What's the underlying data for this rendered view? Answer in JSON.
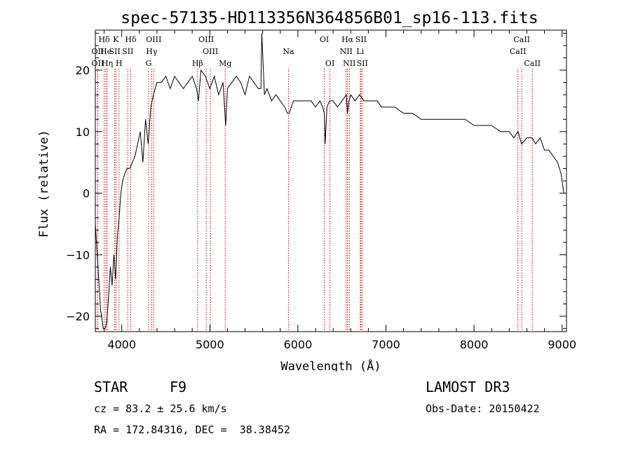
{
  "chart_data": {
    "type": "line",
    "title": "spec-57135-HD113356N364856B01_sp16-113.fits",
    "xlabel": "Wavelength (Å)",
    "ylabel": "Flux (relative)",
    "xlim": [
      3700,
      9050
    ],
    "ylim": [
      -22.5,
      26.5
    ],
    "x_ticks": [
      4000,
      5000,
      6000,
      7000,
      8000,
      9000
    ],
    "y_ticks": [
      -20,
      -10,
      0,
      10,
      20
    ],
    "x_tick_labels": [
      "4000",
      "5000",
      "6000",
      "7000",
      "8000",
      "9000"
    ],
    "y_tick_labels": [
      "−20",
      "−10",
      "0",
      "10",
      "20"
    ],
    "grid": false,
    "legend": "none",
    "series": [
      {
        "x": [
          3700,
          3730,
          3760,
          3790,
          3810,
          3830,
          3850,
          3870,
          3890,
          3910,
          3930,
          3950,
          3970,
          3990,
          4010,
          4030,
          4060,
          4090,
          4120,
          4150,
          4180,
          4210,
          4240,
          4270,
          4300,
          4330,
          4360,
          4400,
          4450,
          4500,
          4550,
          4600,
          4650,
          4700,
          4750,
          4800,
          4850,
          4870,
          4900,
          4950,
          5000,
          5050,
          5100,
          5150,
          5180,
          5200,
          5250,
          5300,
          5350,
          5400,
          5450,
          5500,
          5550,
          5580,
          5590,
          5620,
          5650,
          5700,
          5750,
          5800,
          5850,
          5880,
          5900,
          5950,
          6000,
          6050,
          6100,
          6150,
          6200,
          6250,
          6280,
          6300,
          6310,
          6330,
          6360,
          6400,
          6450,
          6500,
          6550,
          6563,
          6580,
          6600,
          6650,
          6700,
          6750,
          6800,
          6850,
          6900,
          6950,
          7000,
          7100,
          7200,
          7300,
          7400,
          7500,
          7600,
          7700,
          7800,
          7900,
          8000,
          8100,
          8200,
          8300,
          8400,
          8450,
          8500,
          8540,
          8600,
          8660,
          8700,
          8750,
          8800,
          8850,
          8900,
          8950,
          8970,
          8990,
          9000,
          9020
        ],
        "y": [
          -5,
          -12,
          -19,
          -22,
          -22,
          -21,
          -17,
          -12,
          -15,
          -10,
          -14,
          -7,
          -4,
          0,
          2,
          3,
          4,
          4,
          5,
          6,
          8,
          10,
          5,
          12,
          8,
          14,
          16,
          18,
          18,
          19,
          17,
          19,
          18,
          17,
          18,
          19,
          17,
          15,
          20,
          19,
          17,
          19,
          16,
          18,
          11,
          17,
          18,
          19,
          18,
          16,
          19,
          18,
          17,
          17,
          26,
          16,
          17,
          15,
          16,
          15,
          14,
          13,
          13,
          15,
          15,
          15,
          15,
          15,
          14,
          15,
          14,
          13,
          8,
          14,
          15,
          15,
          14,
          15,
          16,
          13,
          15,
          16,
          15,
          16,
          15,
          15,
          15,
          15,
          14,
          14,
          14,
          13,
          13,
          12,
          12,
          12,
          12,
          12,
          12,
          11,
          11,
          11,
          10,
          10,
          9,
          10,
          8,
          9,
          9,
          8,
          9,
          7,
          7,
          6,
          5,
          4,
          3,
          2,
          0
        ]
      }
    ],
    "spectral_lines": [
      {
        "label": "Hδ",
        "x": 3800,
        "row": 0
      },
      {
        "label": "OII",
        "x": 3727,
        "row": 1
      },
      {
        "label": "OII",
        "x": 3727,
        "row": 2
      },
      {
        "label": "He",
        "x": 3820,
        "row": 1
      },
      {
        "label": "Hη",
        "x": 3835,
        "row": 2
      },
      {
        "label": "K",
        "x": 3934,
        "row": 0
      },
      {
        "label": "SII",
        "x": 3920,
        "row": 1
      },
      {
        "label": "H",
        "x": 3969,
        "row": 2
      },
      {
        "label": "Hδ",
        "x": 4102,
        "row": 0
      },
      {
        "label": "SII",
        "x": 4068,
        "row": 1
      },
      {
        "label": "OIII",
        "x": 4363,
        "row": 0
      },
      {
        "label": "Hγ",
        "x": 4340,
        "row": 1
      },
      {
        "label": "G",
        "x": 4305,
        "row": 2
      },
      {
        "label": "OIII",
        "x": 4959,
        "row": 0
      },
      {
        "label": "OIII",
        "x": 5007,
        "row": 1
      },
      {
        "label": "Hβ",
        "x": 4861,
        "row": 2
      },
      {
        "label": "Mg",
        "x": 5175,
        "row": 2
      },
      {
        "label": "Na",
        "x": 5893,
        "row": 1
      },
      {
        "label": "OI",
        "x": 6300,
        "row": 0
      },
      {
        "label": "OI",
        "x": 6364,
        "row": 2
      },
      {
        "label": "Hα",
        "x": 6563,
        "row": 0
      },
      {
        "label": "SII",
        "x": 6717,
        "row": 0
      },
      {
        "label": "NII",
        "x": 6548,
        "row": 1
      },
      {
        "label": "Li",
        "x": 6708,
        "row": 1
      },
      {
        "label": "NII",
        "x": 6584,
        "row": 2
      },
      {
        "label": "SII",
        "x": 6731,
        "row": 2
      },
      {
        "label": "CaII",
        "x": 8542,
        "row": 0
      },
      {
        "label": "CaII",
        "x": 8498,
        "row": 1
      },
      {
        "label": "CaII",
        "x": 8662,
        "row": 2
      }
    ]
  },
  "info": {
    "object_class": "STAR",
    "subclass": "F9",
    "survey": "LAMOST DR3",
    "cz": "cz = 83.2 ± 25.6 km/s",
    "obs_date": "Obs-Date: 20150422",
    "coords": "RA = 172.84316, DEC =  38.38452"
  },
  "colors": {
    "line": "#000000",
    "marker": "#cc0000"
  }
}
